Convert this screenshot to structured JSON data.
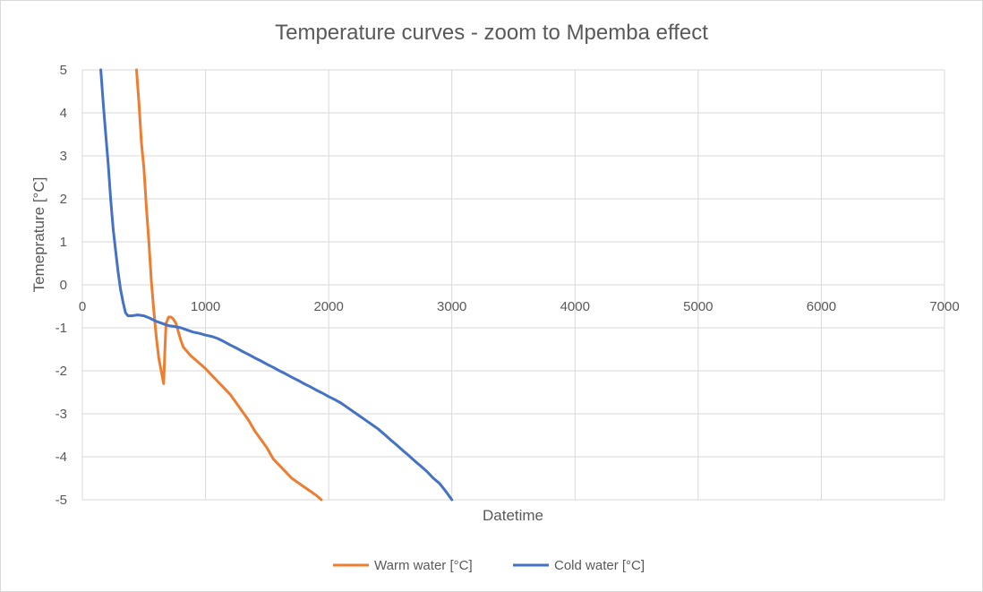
{
  "chart_data": {
    "type": "line",
    "title": "Temperature curves - zoom to Mpemba effect",
    "xlabel": "Datetime",
    "ylabel": "Temeprature [°C]",
    "xlim": [
      0,
      7000
    ],
    "ylim": [
      -5,
      5
    ],
    "x_ticks": [
      0,
      1000,
      2000,
      3000,
      4000,
      5000,
      6000,
      7000
    ],
    "y_ticks": [
      5,
      4,
      3,
      2,
      1,
      0,
      -1,
      -2,
      -3,
      -4,
      -5
    ],
    "grid": true,
    "legend_position": "bottom",
    "series": [
      {
        "name": "Warm water [°C]",
        "color": "#ED7D31",
        "x": [
          440,
          460,
          480,
          500,
          520,
          540,
          560,
          580,
          600,
          620,
          640,
          660,
          670,
          680,
          700,
          720,
          740,
          760,
          780,
          800,
          820,
          850,
          880,
          920,
          960,
          1000,
          1050,
          1100,
          1150,
          1200,
          1250,
          1300,
          1350,
          1400,
          1450,
          1500,
          1550,
          1600,
          1650,
          1700,
          1750,
          1800,
          1850,
          1900,
          1940
        ],
        "values": [
          5.0,
          4.2,
          3.3,
          2.7,
          1.8,
          1.0,
          0.1,
          -0.6,
          -1.2,
          -1.7,
          -2.0,
          -2.3,
          -1.5,
          -0.9,
          -0.75,
          -0.75,
          -0.8,
          -0.9,
          -1.1,
          -1.3,
          -1.45,
          -1.55,
          -1.65,
          -1.75,
          -1.85,
          -1.95,
          -2.1,
          -2.25,
          -2.4,
          -2.55,
          -2.75,
          -2.95,
          -3.15,
          -3.4,
          -3.6,
          -3.8,
          -4.05,
          -4.2,
          -4.35,
          -4.5,
          -4.6,
          -4.7,
          -4.8,
          -4.9,
          -5.0
        ]
      },
      {
        "name": "Cold water [°C]",
        "color": "#4472C4",
        "x": [
          150,
          170,
          190,
          210,
          230,
          250,
          270,
          290,
          310,
          330,
          350,
          370,
          400,
          450,
          500,
          550,
          600,
          650,
          700,
          750,
          800,
          850,
          900,
          950,
          1000,
          1050,
          1100,
          1150,
          1200,
          1250,
          1300,
          1350,
          1400,
          1450,
          1500,
          1550,
          1600,
          1650,
          1700,
          1750,
          1800,
          1850,
          1900,
          1950,
          2000,
          2050,
          2100,
          2150,
          2200,
          2250,
          2300,
          2350,
          2400,
          2450,
          2500,
          2550,
          2600,
          2650,
          2700,
          2750,
          2800,
          2850,
          2900,
          2950,
          3000
        ],
        "values": [
          5.0,
          4.2,
          3.5,
          2.8,
          2.0,
          1.3,
          0.8,
          0.3,
          -0.1,
          -0.4,
          -0.65,
          -0.72,
          -0.72,
          -0.7,
          -0.72,
          -0.78,
          -0.85,
          -0.9,
          -0.95,
          -0.97,
          -1.0,
          -1.05,
          -1.1,
          -1.13,
          -1.17,
          -1.2,
          -1.25,
          -1.32,
          -1.4,
          -1.47,
          -1.55,
          -1.62,
          -1.7,
          -1.77,
          -1.85,
          -1.92,
          -2.0,
          -2.07,
          -2.15,
          -2.22,
          -2.3,
          -2.37,
          -2.45,
          -2.52,
          -2.6,
          -2.67,
          -2.75,
          -2.85,
          -2.95,
          -3.05,
          -3.15,
          -3.25,
          -3.35,
          -3.47,
          -3.6,
          -3.72,
          -3.85,
          -3.97,
          -4.1,
          -4.22,
          -4.35,
          -4.5,
          -4.62,
          -4.8,
          -5.0
        ]
      }
    ]
  }
}
